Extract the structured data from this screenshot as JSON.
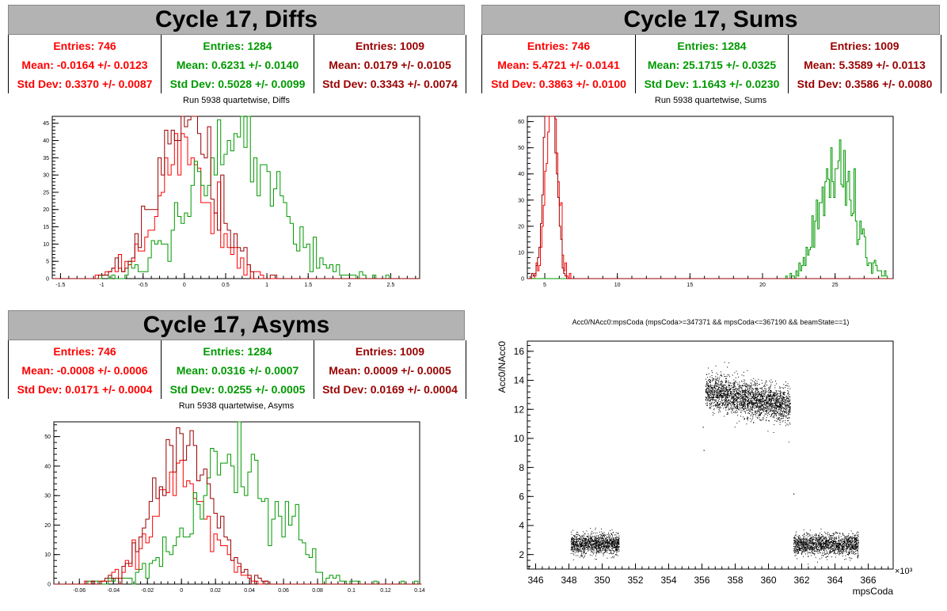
{
  "panels": {
    "diffs": {
      "title": "Cycle 17, Diffs",
      "subtitle": "Run 5938 quartetwise, Diffs",
      "stats": [
        {
          "entries": "Entries: 746",
          "mean": "Mean: -0.0164 +/- 0.0123",
          "std": "Std Dev: 0.3370 +/- 0.0087",
          "color": "#ff0000"
        },
        {
          "entries": "Entries: 1284",
          "mean": "Mean: 0.6231 +/- 0.0140",
          "std": "Std Dev: 0.5028 +/- 0.0099",
          "color": "#009900"
        },
        {
          "entries": "Entries: 1009",
          "mean": "Mean: 0.0179 +/- 0.0105",
          "std": "Std Dev: 0.3343 +/- 0.0074",
          "color": "#990000"
        }
      ]
    },
    "sums": {
      "title": "Cycle 17, Sums",
      "subtitle": "Run 5938 quartetwise, Sums",
      "stats": [
        {
          "entries": "Entries: 746",
          "mean": "Mean: 5.4721 +/- 0.0141",
          "std": "Std Dev: 0.3863 +/- 0.0100",
          "color": "#ff0000"
        },
        {
          "entries": "Entries: 1284",
          "mean": "Mean: 25.1715 +/- 0.0325",
          "std": "Std Dev: 1.1643 +/- 0.0230",
          "color": "#009900"
        },
        {
          "entries": "Entries: 1009",
          "mean": "Mean: 5.3589 +/- 0.0113",
          "std": "Std Dev: 0.3586 +/- 0.0080",
          "color": "#990000"
        }
      ]
    },
    "asyms": {
      "title": "Cycle 17, Asyms",
      "subtitle": "Run 5938 quartetwise, Asyms",
      "stats": [
        {
          "entries": "Entries: 746",
          "mean": "Mean: -0.0008 +/- 0.0006",
          "std": "Std Dev: 0.0171 +/- 0.0004",
          "color": "#ff0000"
        },
        {
          "entries": "Entries: 1284",
          "mean": "Mean: 0.0316 +/- 0.0007",
          "std": "Std Dev: 0.0255 +/- 0.0005",
          "color": "#009900"
        },
        {
          "entries": "Entries: 1009",
          "mean": "Mean: 0.0009 +/- 0.0005",
          "std": "Std Dev: 0.0169 +/- 0.0004",
          "color": "#990000"
        }
      ]
    },
    "scatter": {
      "title": "Acc0/NAcc0:mpsCoda (mpsCoda>=347371 && mpsCoda<=367190 && beamState==1)"
    }
  },
  "chart_data": [
    {
      "id": "diffs",
      "type": "histogram",
      "xlim": [
        -1.6,
        2.85
      ],
      "ylim": [
        0,
        47
      ],
      "xticks": [
        -1.5,
        -1,
        -0.5,
        0,
        0.5,
        1,
        1.5,
        2,
        2.5
      ],
      "xtick_labels": [
        "-1.5",
        "-1",
        "-0.5",
        "0",
        "0.5",
        "1",
        "1.5",
        "2",
        "2.5"
      ],
      "yticks": [
        0,
        5,
        10,
        15,
        20,
        25,
        30,
        35,
        40,
        45
      ],
      "bin_width": 0.04,
      "series": [
        {
          "color": "#ff0000",
          "mean": -0.0164,
          "std": 0.337,
          "n": 746
        },
        {
          "color": "#009900",
          "mean": 0.6231,
          "std": 0.5028,
          "n": 1284
        },
        {
          "color": "#990000",
          "mean": 0.0179,
          "std": 0.3343,
          "n": 1009
        }
      ]
    },
    {
      "id": "sums",
      "type": "histogram",
      "xlim": [
        3.8,
        29.0
      ],
      "ylim": [
        0,
        62
      ],
      "xticks": [
        5,
        10,
        15,
        20,
        25
      ],
      "xtick_labels": [
        "5",
        "10",
        "15",
        "20",
        "25"
      ],
      "yticks": [
        0,
        10,
        20,
        30,
        40,
        50,
        60
      ],
      "bin_width": 0.1,
      "series": [
        {
          "color": "#ff0000",
          "mean": 5.4721,
          "std": 0.3863,
          "n": 746
        },
        {
          "color": "#009900",
          "mean": 25.1715,
          "std": 1.1643,
          "n": 1284
        },
        {
          "color": "#990000",
          "mean": 5.3589,
          "std": 0.3586,
          "n": 1009
        }
      ]
    },
    {
      "id": "asyms",
      "type": "histogram",
      "xlim": [
        -0.075,
        0.14
      ],
      "ylim": [
        0,
        55
      ],
      "xticks": [
        -0.06,
        -0.04,
        -0.02,
        0,
        0.02,
        0.04,
        0.06,
        0.08,
        0.1,
        0.12,
        0.14
      ],
      "xtick_labels": [
        "-0.06",
        "-0.04",
        "-0.02",
        "0",
        "0.02",
        "0.04",
        "0.06",
        "0.08",
        "0.1",
        "0.12",
        "0.14"
      ],
      "yticks": [
        0,
        10,
        20,
        30,
        40,
        50
      ],
      "bin_width": 0.002,
      "series": [
        {
          "color": "#ff0000",
          "mean": -0.0008,
          "std": 0.0171,
          "n": 746
        },
        {
          "color": "#009900",
          "mean": 0.0316,
          "std": 0.0255,
          "n": 1284
        },
        {
          "color": "#990000",
          "mean": 0.0009,
          "std": 0.0169,
          "n": 1009
        }
      ]
    },
    {
      "id": "scatter",
      "type": "scatter",
      "xlabel": "mpsCoda",
      "ylabel": "Acc0/NAcc0",
      "x_multiplier": "×10³",
      "xlim": [
        345.5,
        367.5
      ],
      "ylim": [
        1,
        16.7
      ],
      "xticks": [
        346,
        348,
        350,
        352,
        354,
        356,
        358,
        360,
        362,
        364,
        366
      ],
      "xtick_labels": [
        "346",
        "348",
        "350",
        "352",
        "354",
        "356",
        "358",
        "360",
        "362",
        "364",
        "366"
      ],
      "yticks": [
        2,
        4,
        6,
        8,
        10,
        12,
        14,
        16
      ],
      "ytick_labels": [
        "2",
        "4",
        "6",
        "8",
        "10",
        "12",
        "14",
        "16"
      ],
      "clusters": [
        {
          "x": [
            348.1,
            351.0
          ],
          "y_mean": 2.75,
          "y_spread": 0.35,
          "n": 1200
        },
        {
          "x": [
            356.2,
            361.3
          ],
          "y_mean_start": 13.3,
          "y_mean_end": 12.2,
          "y_spread": 0.6,
          "n": 2400
        },
        {
          "x": [
            361.5,
            365.4
          ],
          "y_mean": 2.7,
          "y_spread": 0.35,
          "n": 1500
        }
      ],
      "outliers": [
        [
          356.1,
          9.2
        ],
        [
          356.05,
          10.8
        ],
        [
          361.5,
          6.2
        ]
      ]
    }
  ]
}
